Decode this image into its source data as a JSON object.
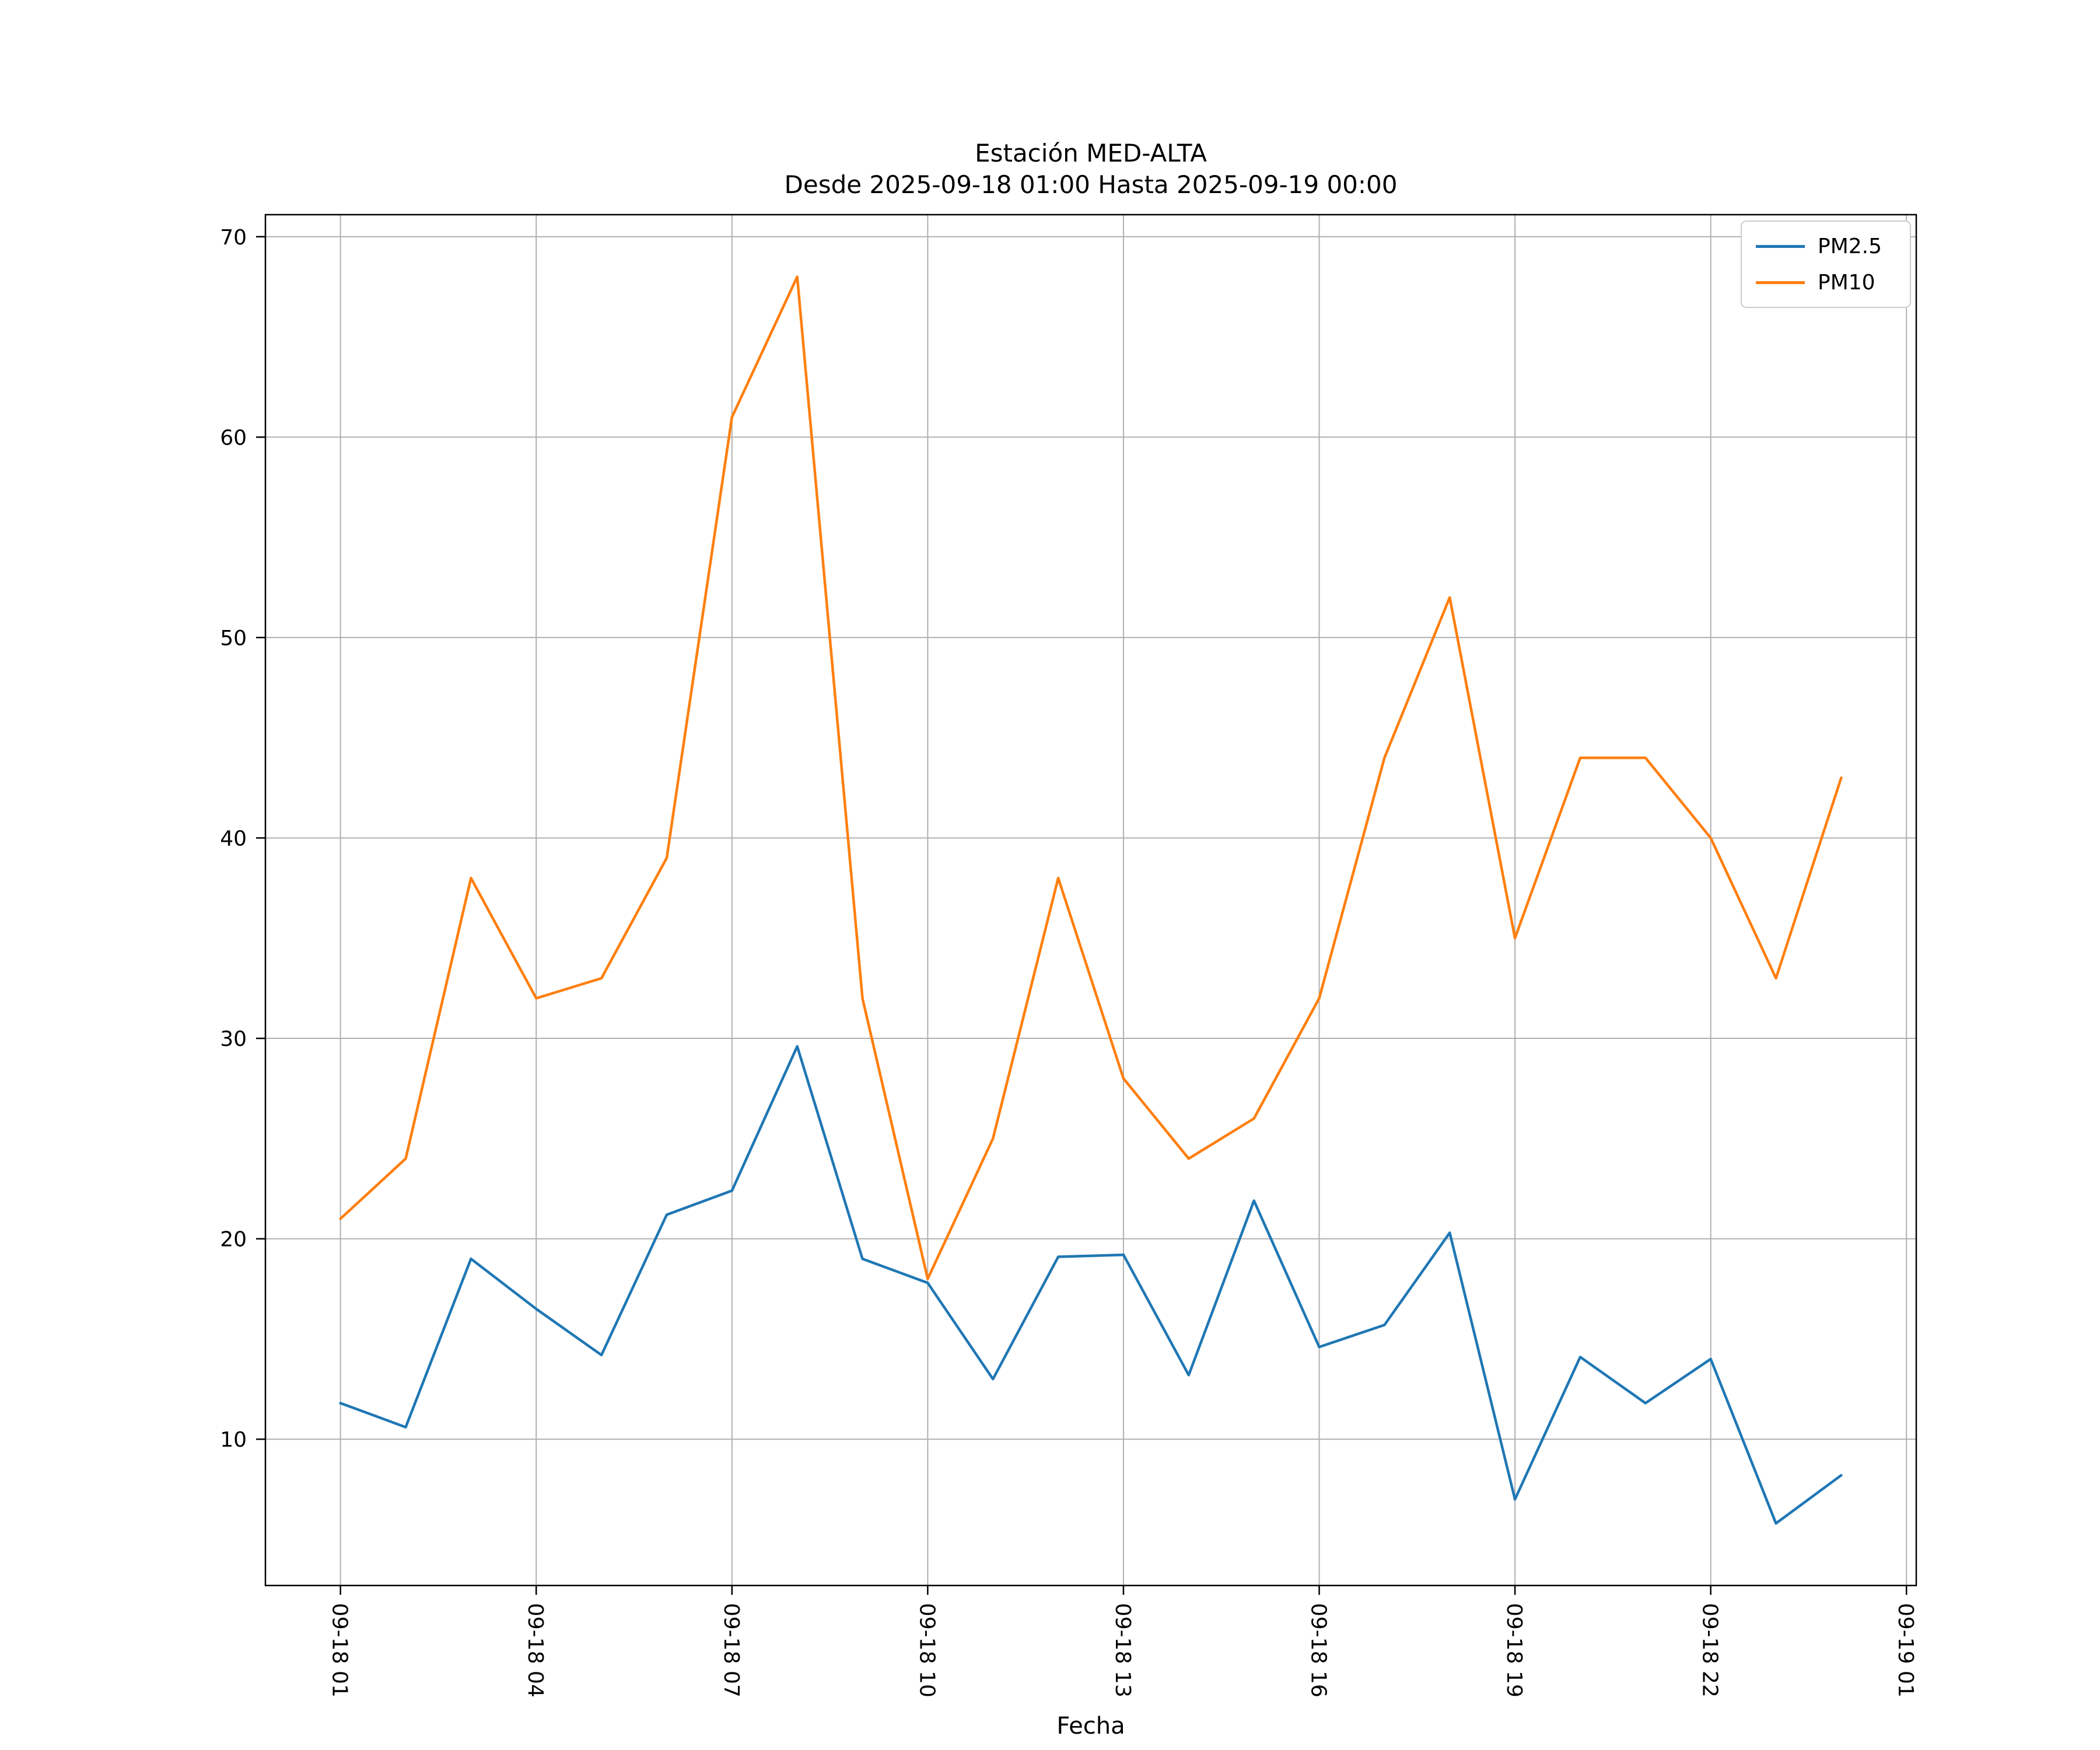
{
  "figure": {
    "title": "Estación MED-ALTA",
    "subtitle": "Desde 2025-09-18 01:00 Hasta 2025-09-19 00:00",
    "xlabel": "Fecha"
  },
  "legend": {
    "items": [
      {
        "label": "PM2.5",
        "color": "#1f77b4"
      },
      {
        "label": "PM10",
        "color": "#ff7f0e"
      }
    ]
  },
  "chart_data": {
    "type": "line",
    "title": "Estación MED-ALTA\nDesde 2025-09-18 01:00 Hasta 2025-09-19 00:00",
    "xlabel": "Fecha",
    "ylabel": "",
    "grid": true,
    "grid_color": "#b0b0b0",
    "legend_position": "upper right",
    "x_tick_labels": [
      "09-18 01",
      "09-18 04",
      "09-18 07",
      "09-18 10",
      "09-18 13",
      "09-18 16",
      "09-18 19",
      "09-18 22",
      "09-19 01"
    ],
    "x_tick_hours": [
      0,
      3,
      6,
      9,
      12,
      15,
      18,
      21,
      24
    ],
    "y_ticks": [
      10,
      20,
      30,
      40,
      50,
      60,
      70
    ],
    "xlim_hours": [
      -1.15,
      24.15
    ],
    "ylim": [
      2.7,
      71.1
    ],
    "x_hours": [
      0,
      1,
      2,
      3,
      4,
      5,
      6,
      7,
      8,
      9,
      10,
      11,
      12,
      13,
      14,
      15,
      16,
      17,
      18,
      19,
      20,
      21,
      22,
      23
    ],
    "series": [
      {
        "name": "PM2.5",
        "color": "#1f77b4",
        "values": [
          11.8,
          10.6,
          19.0,
          16.5,
          14.2,
          21.2,
          22.4,
          29.6,
          19.0,
          17.8,
          13.0,
          19.1,
          19.2,
          13.2,
          21.9,
          14.6,
          15.7,
          20.3,
          7.0,
          14.1,
          11.8,
          14.0,
          5.8,
          8.2
        ]
      },
      {
        "name": "PM10",
        "color": "#ff7f0e",
        "values": [
          21,
          24,
          38,
          32,
          33,
          39,
          61,
          68,
          32,
          18,
          25,
          38,
          28,
          24,
          26,
          32,
          44,
          52,
          35,
          44,
          44,
          40,
          33,
          43
        ]
      }
    ]
  }
}
